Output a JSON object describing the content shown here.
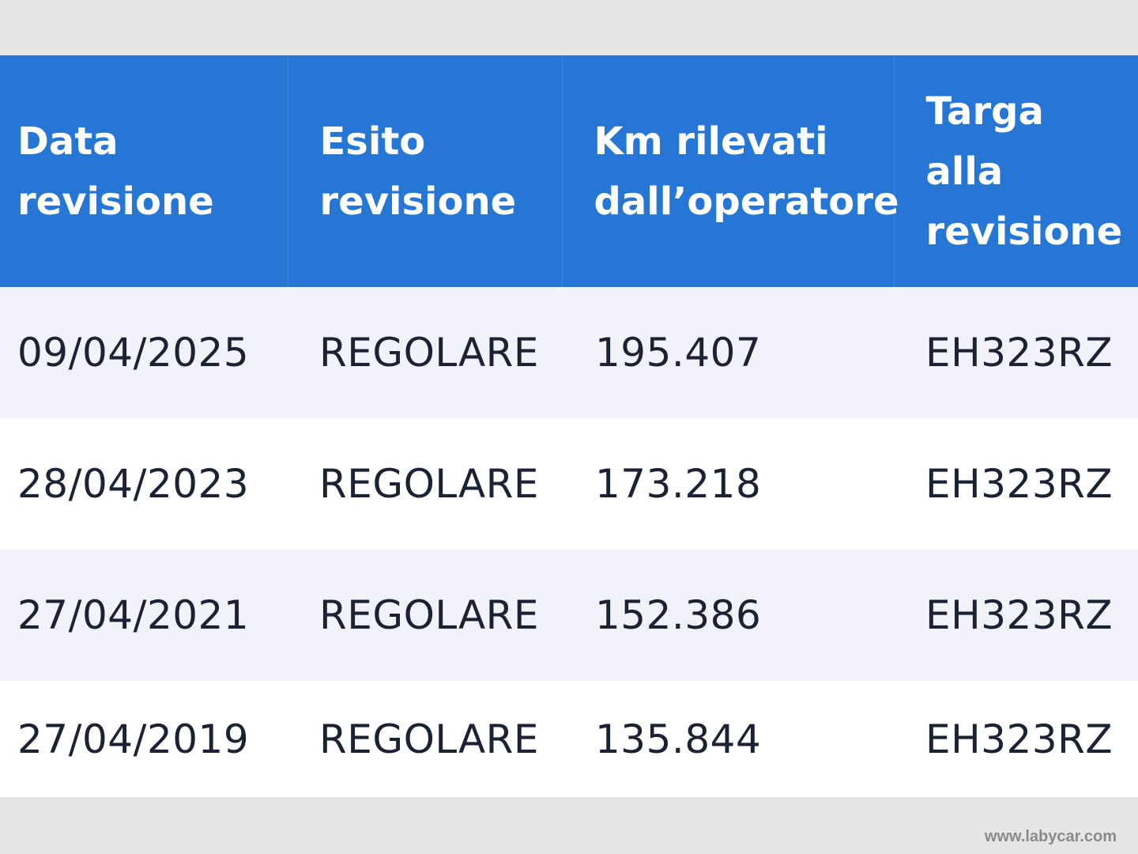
{
  "table": {
    "headers": [
      {
        "line1": "Data",
        "line2": "revisione"
      },
      {
        "line1": "Esito",
        "line2": "revisione"
      },
      {
        "line1": "Km rilevati",
        "line2": "dall’operatore"
      },
      {
        "line1": "Targa",
        "line2": "alla",
        "line3": "revisione"
      }
    ],
    "rows": [
      {
        "data": "09/04/2025",
        "esito": "REGOLARE",
        "km": "195.407",
        "targa": "EH323RZ"
      },
      {
        "data": "28/04/2023",
        "esito": "REGOLARE",
        "km": "173.218",
        "targa": "EH323RZ"
      },
      {
        "data": "27/04/2021",
        "esito": "REGOLARE",
        "km": "152.386",
        "targa": "EH323RZ"
      },
      {
        "data": "27/04/2019",
        "esito": "REGOLARE",
        "km": "135.844",
        "targa": "EH323RZ"
      }
    ]
  },
  "watermark": "www.labycar.com",
  "colors": {
    "header_bg": "#2676d6",
    "header_text": "#ffffff",
    "row_alt_bg": "#f1f2fa",
    "row_bg": "#ffffff",
    "page_bg": "#e6e6e6"
  }
}
